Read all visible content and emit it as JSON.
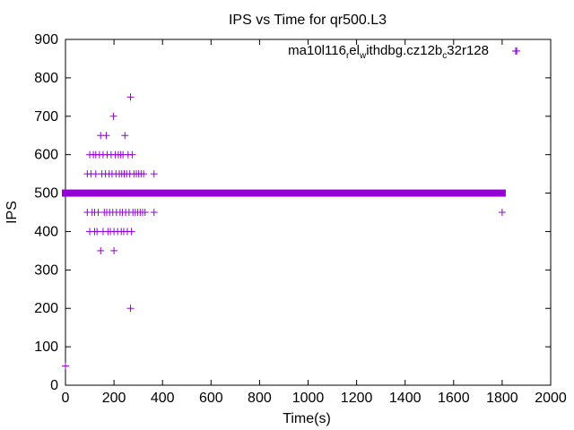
{
  "chart_data": {
    "type": "scatter",
    "title": "IPS vs Time for qr500.L3",
    "xlabel": "Time(s)",
    "ylabel": "IPS",
    "xlim": [
      0,
      2000
    ],
    "ylim": [
      0,
      900
    ],
    "xticks": [
      "0",
      "200",
      "400",
      "600",
      "800",
      "1000",
      "1200",
      "1400",
      "1600",
      "1800",
      "2000"
    ],
    "yticks": [
      "0",
      "100",
      "200",
      "300",
      "400",
      "500",
      "600",
      "700",
      "800",
      "900"
    ],
    "grid": false,
    "legend_position": "top-right",
    "series": [
      {
        "name": "ma10l116relwithdbg.cz12bc32r128",
        "color": "#9400d3",
        "marker": "plus",
        "band": {
          "x_start": 0,
          "x_end": 1800,
          "y": 500
        },
        "points": [
          [
            0,
            50
          ],
          [
            90,
            450
          ],
          [
            90,
            550
          ],
          [
            100,
            400
          ],
          [
            100,
            600
          ],
          [
            105,
            550
          ],
          [
            110,
            450
          ],
          [
            115,
            600
          ],
          [
            120,
            400
          ],
          [
            120,
            450
          ],
          [
            125,
            550
          ],
          [
            125,
            600
          ],
          [
            130,
            400
          ],
          [
            135,
            450
          ],
          [
            140,
            600
          ],
          [
            145,
            350
          ],
          [
            145,
            650
          ],
          [
            150,
            550
          ],
          [
            155,
            400
          ],
          [
            155,
            600
          ],
          [
            160,
            450
          ],
          [
            165,
            550
          ],
          [
            168,
            650
          ],
          [
            170,
            450
          ],
          [
            172,
            600
          ],
          [
            175,
            400
          ],
          [
            180,
            550
          ],
          [
            182,
            450
          ],
          [
            185,
            400
          ],
          [
            188,
            600
          ],
          [
            192,
            550
          ],
          [
            195,
            450
          ],
          [
            198,
            700
          ],
          [
            200,
            350
          ],
          [
            200,
            400
          ],
          [
            205,
            600
          ],
          [
            208,
            550
          ],
          [
            210,
            450
          ],
          [
            215,
            400
          ],
          [
            218,
            600
          ],
          [
            222,
            550
          ],
          [
            225,
            450
          ],
          [
            228,
            600
          ],
          [
            230,
            400
          ],
          [
            232,
            550
          ],
          [
            235,
            450
          ],
          [
            237,
            600
          ],
          [
            240,
            400
          ],
          [
            242,
            550
          ],
          [
            245,
            650
          ],
          [
            248,
            450
          ],
          [
            252,
            550
          ],
          [
            255,
            400
          ],
          [
            258,
            600
          ],
          [
            262,
            450
          ],
          [
            265,
            550
          ],
          [
            268,
            200
          ],
          [
            268,
            750
          ],
          [
            272,
            400
          ],
          [
            275,
            600
          ],
          [
            278,
            450
          ],
          [
            282,
            550
          ],
          [
            288,
            450
          ],
          [
            292,
            550
          ],
          [
            298,
            450
          ],
          [
            302,
            550
          ],
          [
            308,
            450
          ],
          [
            312,
            550
          ],
          [
            318,
            450
          ],
          [
            322,
            550
          ],
          [
            328,
            450
          ],
          [
            365,
            450
          ],
          [
            365,
            550
          ],
          [
            1800,
            450
          ],
          [
            1860,
            870
          ]
        ]
      }
    ]
  }
}
